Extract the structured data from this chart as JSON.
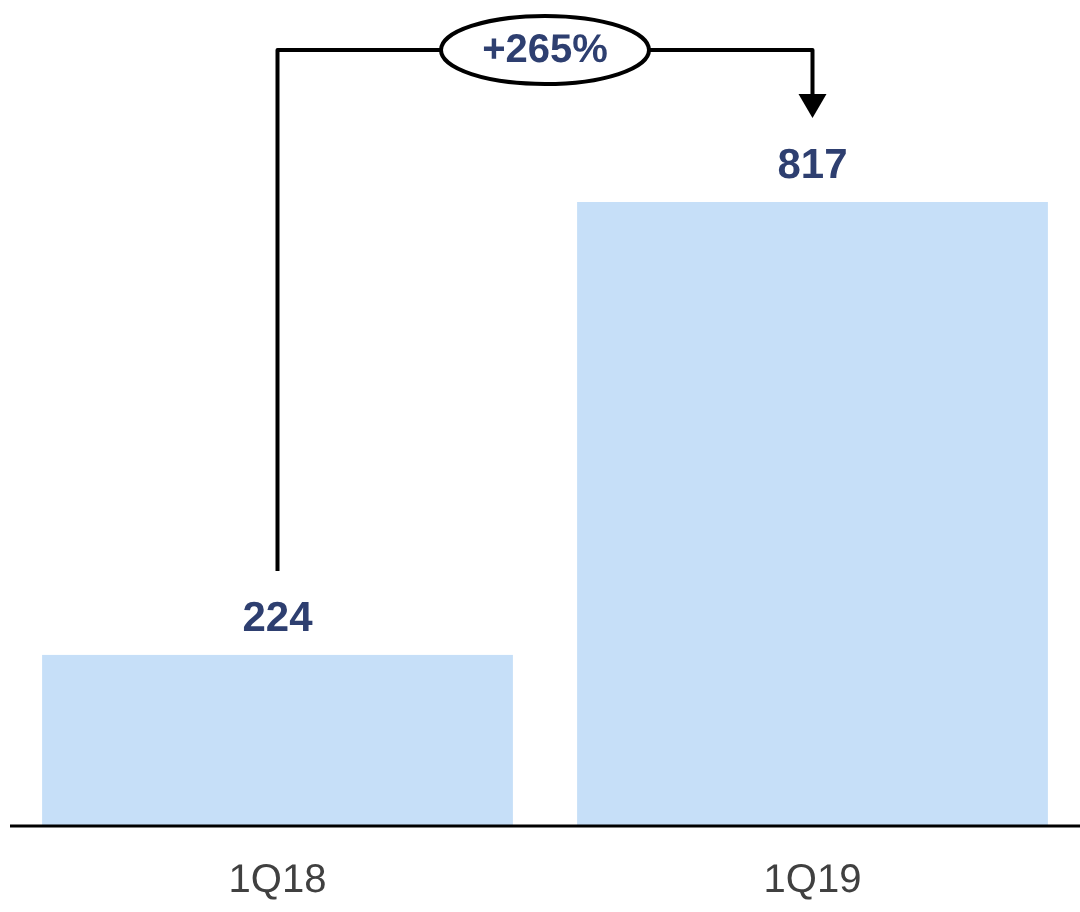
{
  "chart_data": {
    "type": "bar",
    "categories": [
      "1Q18",
      "1Q19"
    ],
    "values": [
      224,
      817
    ],
    "color": "#c6dff8",
    "data_labels": true,
    "annotations": [
      "+265%"
    ]
  }
}
